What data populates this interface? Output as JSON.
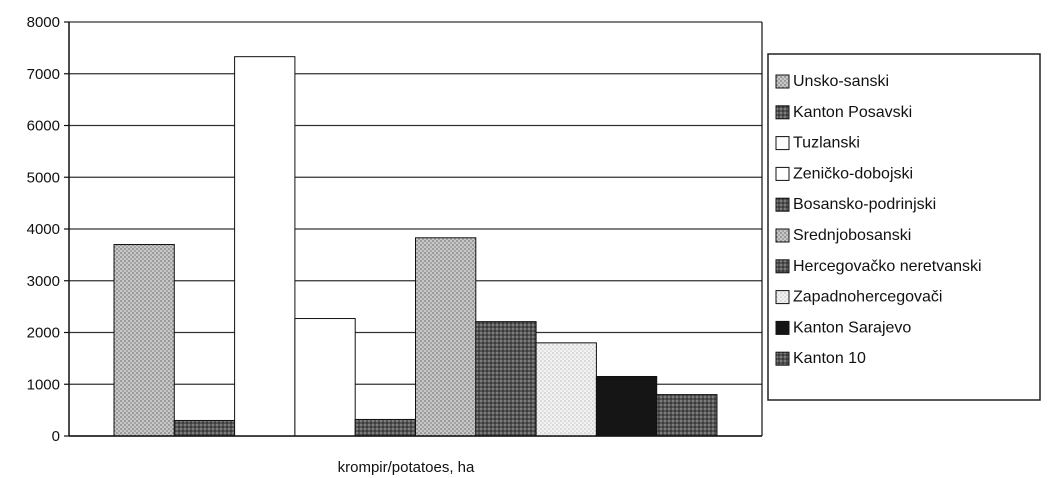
{
  "chart_data": {
    "type": "bar",
    "title": "",
    "xlabel": "krompir/potatoes, ha",
    "ylabel": "",
    "ylim": [
      0,
      8000
    ],
    "yticks": [
      0,
      1000,
      2000,
      3000,
      4000,
      5000,
      6000,
      7000,
      8000
    ],
    "grid": true,
    "legend_position": "right",
    "categories": [
      "krompir/potatoes, ha"
    ],
    "series": [
      {
        "name": "Unsko-sanski",
        "values": [
          3700
        ],
        "fill": "dots-light",
        "color": "#b8b8b8"
      },
      {
        "name": "Kanton Posavski",
        "values": [
          300
        ],
        "fill": "dots-dark",
        "color": "#5a5a5a"
      },
      {
        "name": "Tuzlanski",
        "values": [
          7330
        ],
        "fill": "solid",
        "color": "#ffffff"
      },
      {
        "name": "Zeničko-dobojski",
        "values": [
          2270
        ],
        "fill": "solid",
        "color": "#ffffff"
      },
      {
        "name": "Bosansko-podrinjski",
        "values": [
          320
        ],
        "fill": "dots-dark",
        "color": "#3a3a3a"
      },
      {
        "name": "Srednjobosanski",
        "values": [
          3830
        ],
        "fill": "dots-light",
        "color": "#b0b0b0"
      },
      {
        "name": "Hercegovačko neretvanski",
        "values": [
          2210
        ],
        "fill": "dots-dark",
        "color": "#6a6a6a"
      },
      {
        "name": "Zapadnohercegovači",
        "values": [
          1800
        ],
        "fill": "dots-faint",
        "color": "#ececec"
      },
      {
        "name": "Kanton Sarajevo",
        "values": [
          1150
        ],
        "fill": "solid",
        "color": "#151515"
      },
      {
        "name": "Kanton 10",
        "values": [
          800
        ],
        "fill": "dots-dark",
        "color": "#777777"
      }
    ]
  }
}
